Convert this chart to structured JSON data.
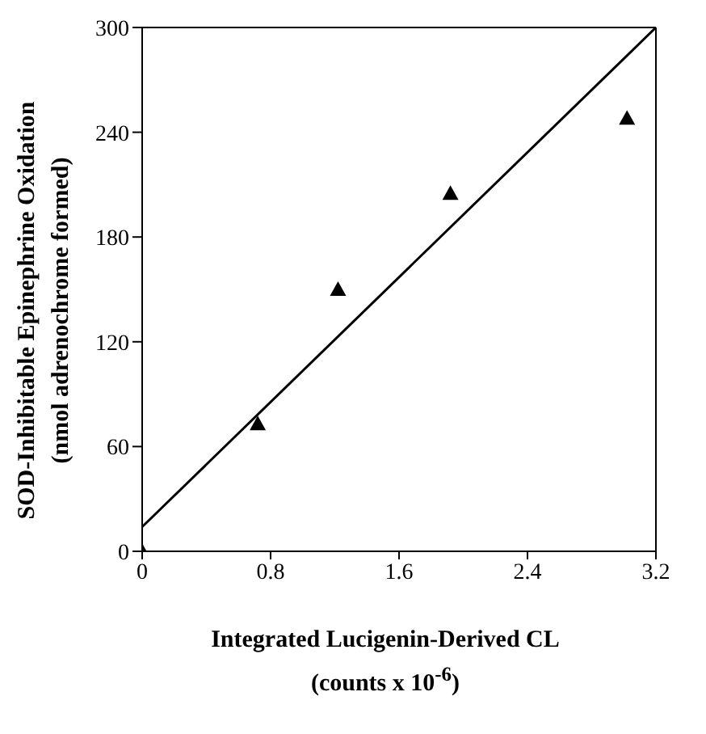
{
  "chart_data": {
    "type": "scatter",
    "xlabel": "Integrated Lucigenin-Derived CL\n(counts x 10$^{-6}$)",
    "ylabel": "SOD-Inhibitable Epinephrine Oxidation\n(nmol adrenochrome formed)",
    "xlim": [
      0,
      3.2
    ],
    "xticks": [
      0,
      0.8,
      1.6,
      2.4,
      3.2
    ],
    "ylim": [
      0,
      300
    ],
    "yticks": [
      0,
      60,
      120,
      180,
      240,
      300
    ],
    "series": [
      {
        "x": [
          0,
          0.72,
          1.22,
          1.92,
          3.02
        ],
        "values": [
          0,
          73,
          150,
          205,
          248
        ],
        "color": "#000000",
        "marker": "triangle"
      },
      {
        "type": "line",
        "x": [
          0,
          3.2
        ],
        "values": [
          14,
          300
        ],
        "color": "#000000",
        "marker": "none"
      }
    ]
  }
}
